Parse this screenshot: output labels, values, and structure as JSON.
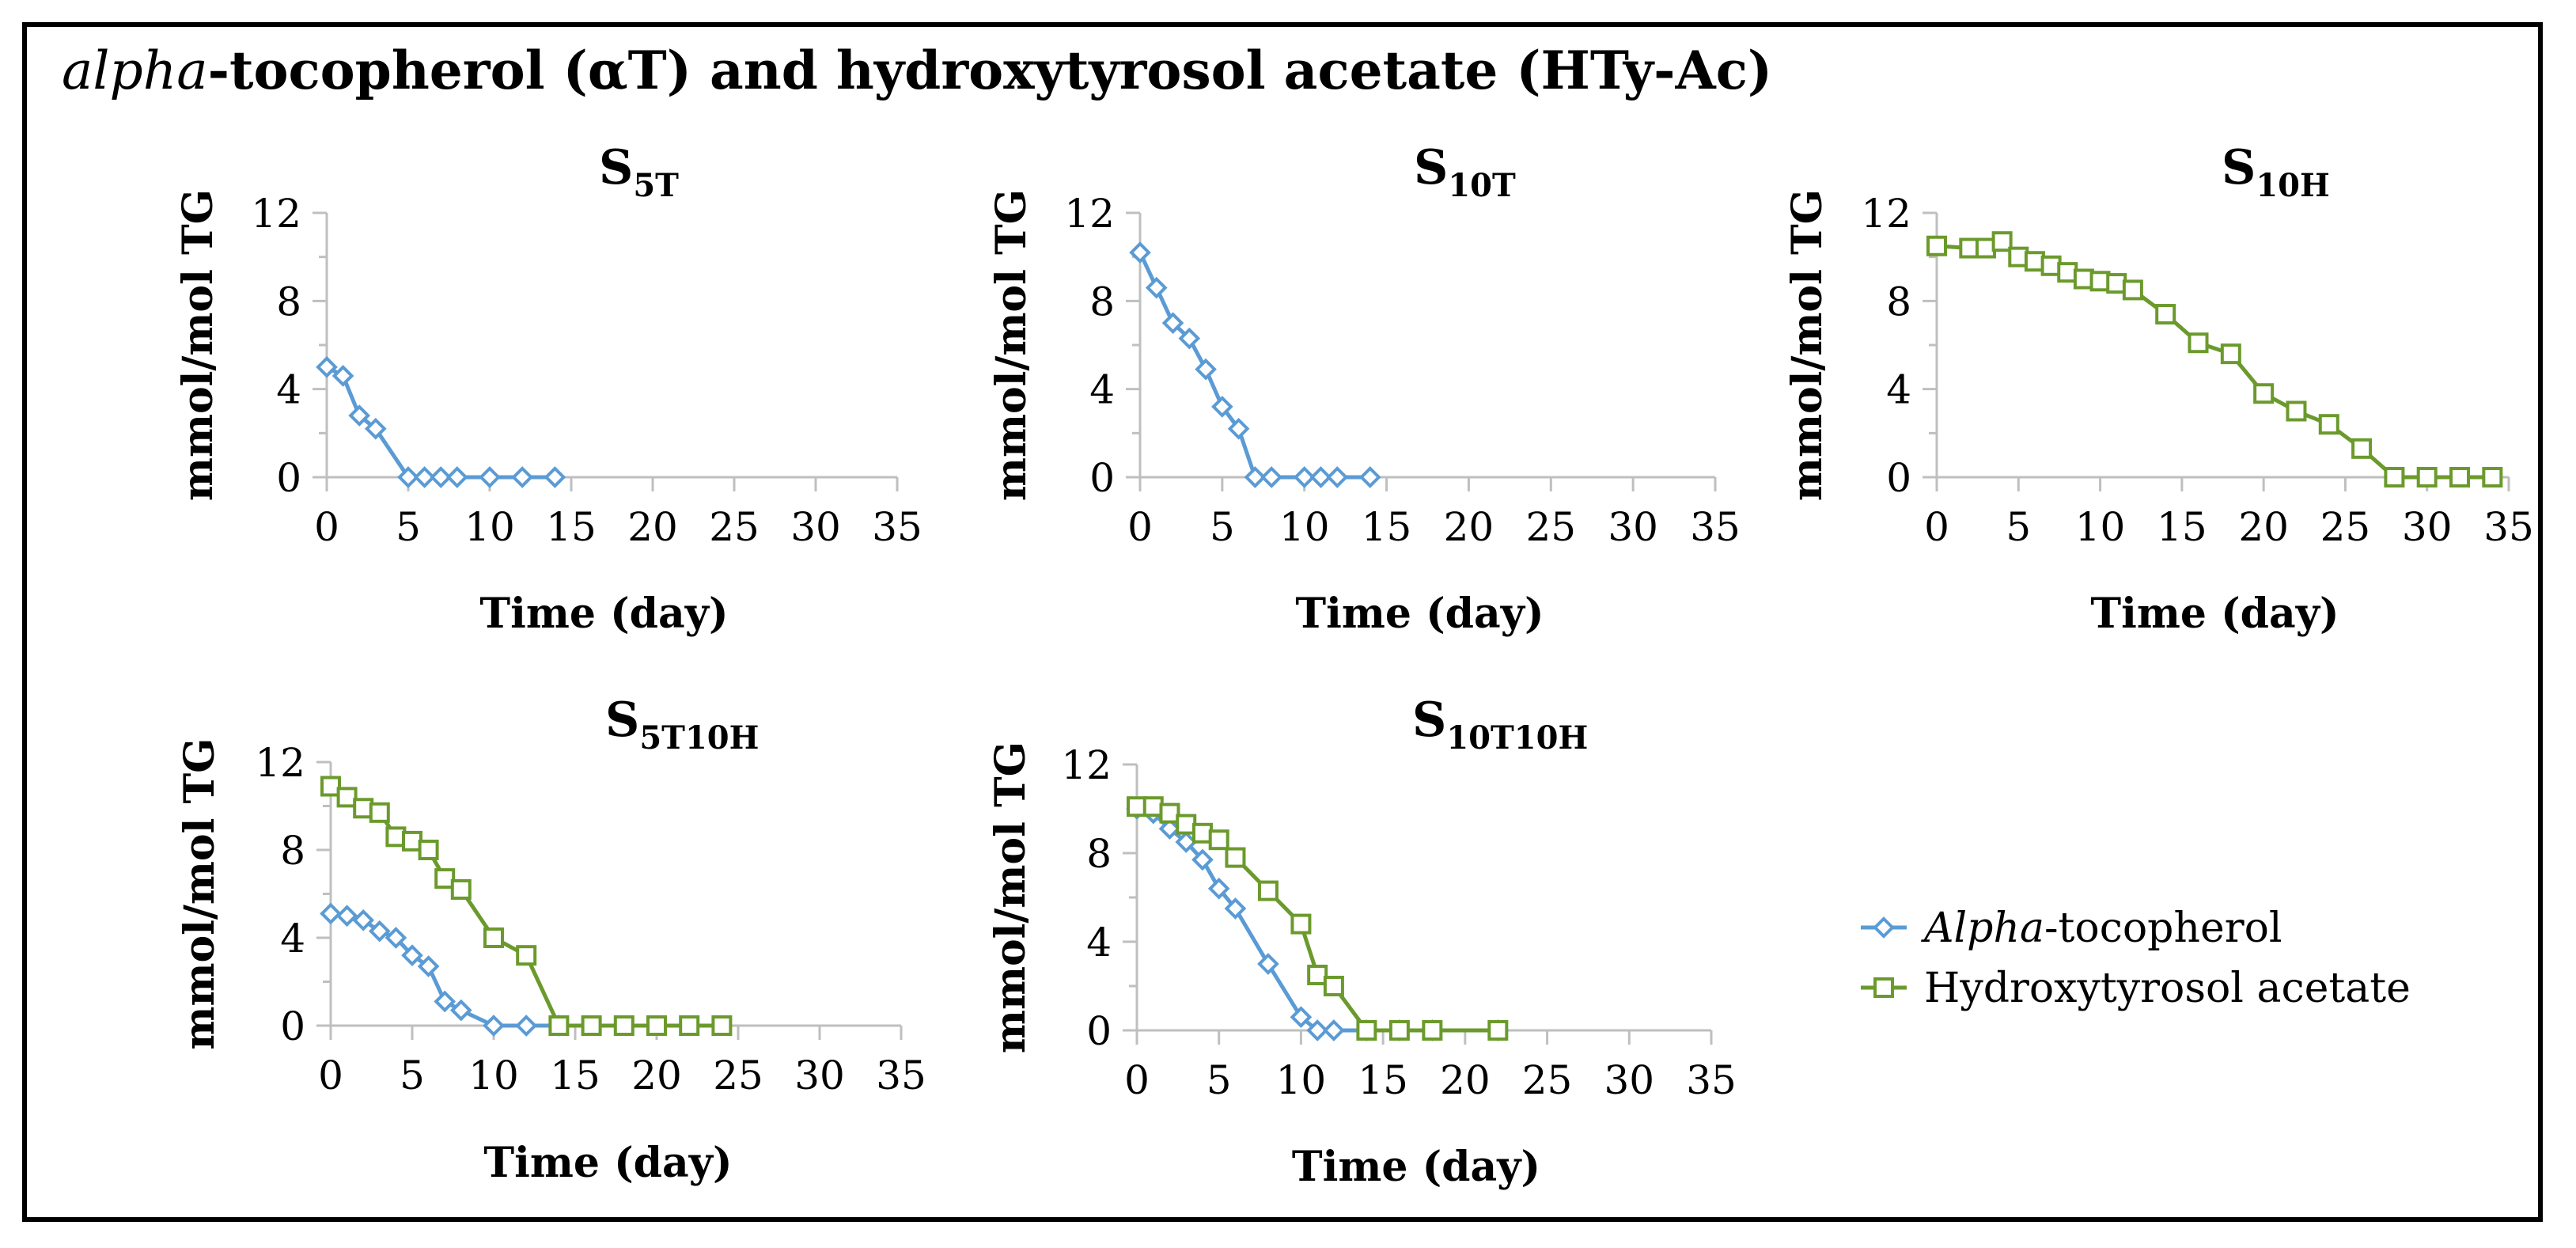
{
  "figure_title": {
    "italic_part": "alpha",
    "bold_part": "-tocopherol (αT) and hydroxytyrosol acetate (HTy-Ac)"
  },
  "colors": {
    "alpha_tocopherol": "#5b9bd5",
    "hydroxytyrosol_acetate": "#6b9a2c",
    "axis": "#bfbfbf",
    "text": "#000000"
  },
  "legend": {
    "items": [
      {
        "series": "alpha",
        "italic": "Alpha",
        "rest": "-tocopherol",
        "marker": "diamond"
      },
      {
        "series": "hty",
        "italic": "",
        "rest": "Hydroxytyrosol acetate",
        "marker": "square"
      }
    ]
  },
  "chart_data": [
    {
      "type": "line",
      "title": {
        "main": "S",
        "sub": "5T"
      },
      "xlabel": "Time (day)",
      "ylabel": "mmol/mol TG",
      "xlim": [
        0,
        35
      ],
      "ylim": [
        0,
        12
      ],
      "xticks": [
        "0",
        "5",
        "10",
        "15",
        "20",
        "25",
        "30",
        "35"
      ],
      "yticks": [
        "0",
        "4",
        "8",
        "12"
      ],
      "series": [
        {
          "name": "Alpha-tocopherol",
          "key": "alpha",
          "x": [
            0,
            1,
            2,
            3,
            5,
            6,
            7,
            8,
            10,
            12,
            14
          ],
          "y": [
            5.0,
            4.6,
            2.8,
            2.2,
            0,
            0,
            0,
            0,
            0,
            0,
            0
          ]
        }
      ]
    },
    {
      "type": "line",
      "title": {
        "main": "S",
        "sub": "10T"
      },
      "xlabel": "Time (day)",
      "ylabel": "mmol/mol TG",
      "xlim": [
        0,
        35
      ],
      "ylim": [
        0,
        12
      ],
      "xticks": [
        "0",
        "5",
        "10",
        "15",
        "20",
        "25",
        "30",
        "35"
      ],
      "yticks": [
        "0",
        "4",
        "8",
        "12"
      ],
      "series": [
        {
          "name": "Alpha-tocopherol",
          "key": "alpha",
          "x": [
            0,
            1,
            2,
            3,
            4,
            5,
            6,
            7,
            8,
            10,
            11,
            12,
            14
          ],
          "y": [
            10.2,
            8.6,
            7.0,
            6.3,
            4.9,
            3.2,
            2.2,
            0,
            0,
            0,
            0,
            0,
            0
          ]
        }
      ]
    },
    {
      "type": "line",
      "title": {
        "main": "S",
        "sub": "10H"
      },
      "xlabel": "Time (day)",
      "ylabel": "mmol/mol TG",
      "xlim": [
        0,
        35
      ],
      "ylim": [
        0,
        12
      ],
      "xticks": [
        "0",
        "5",
        "10",
        "15",
        "20",
        "25",
        "30",
        "35"
      ],
      "yticks": [
        "0",
        "4",
        "8",
        "12"
      ],
      "series": [
        {
          "name": "Hydroxytyrosol acetate",
          "key": "hty",
          "x": [
            0,
            2,
            3,
            4,
            5,
            6,
            7,
            8,
            9,
            10,
            11,
            12,
            14,
            16,
            18,
            20,
            22,
            24,
            26,
            28,
            30,
            32,
            34
          ],
          "y": [
            10.5,
            10.4,
            10.4,
            10.7,
            10.0,
            9.8,
            9.6,
            9.3,
            9.0,
            8.9,
            8.8,
            8.5,
            7.4,
            6.1,
            5.6,
            3.8,
            3.0,
            2.4,
            1.3,
            0,
            0,
            0,
            0
          ]
        }
      ]
    },
    {
      "type": "line",
      "title": {
        "main": "S",
        "sub": "5T10H"
      },
      "xlabel": "Time (day)",
      "ylabel": "mmol/mol TG",
      "xlim": [
        0,
        35
      ],
      "ylim": [
        0,
        12
      ],
      "xticks": [
        "0",
        "5",
        "10",
        "15",
        "20",
        "25",
        "30",
        "35"
      ],
      "yticks": [
        "0",
        "4",
        "8",
        "12"
      ],
      "series": [
        {
          "name": "Alpha-tocopherol",
          "key": "alpha",
          "x": [
            0,
            1,
            2,
            3,
            4,
            5,
            6,
            7,
            8,
            10,
            12,
            14
          ],
          "y": [
            5.1,
            5.0,
            4.8,
            4.3,
            4.0,
            3.2,
            2.7,
            1.1,
            0.7,
            0,
            0,
            0
          ]
        },
        {
          "name": "Hydroxytyrosol acetate",
          "key": "hty",
          "x": [
            0,
            1,
            2,
            3,
            4,
            5,
            6,
            7,
            8,
            10,
            12,
            14,
            16,
            18,
            20,
            22,
            24
          ],
          "y": [
            10.9,
            10.4,
            9.9,
            9.7,
            8.6,
            8.4,
            8.0,
            6.7,
            6.2,
            4.0,
            3.2,
            0,
            0,
            0,
            0,
            0,
            0
          ]
        }
      ]
    },
    {
      "type": "line",
      "title": {
        "main": "S",
        "sub": "10T10H"
      },
      "xlabel": "Time (day)",
      "ylabel": "mmol/mol TG",
      "xlim": [
        0,
        35
      ],
      "ylim": [
        0,
        12
      ],
      "xticks": [
        "0",
        "5",
        "10",
        "15",
        "20",
        "25",
        "30",
        "35"
      ],
      "yticks": [
        "0",
        "4",
        "8",
        "12"
      ],
      "series": [
        {
          "name": "Alpha-tocopherol",
          "key": "alpha",
          "x": [
            0,
            1,
            2,
            3,
            4,
            5,
            6,
            8,
            10,
            11,
            12,
            14,
            16,
            18,
            22
          ],
          "y": [
            10.0,
            9.8,
            9.1,
            8.5,
            7.7,
            6.4,
            5.5,
            3.0,
            0.6,
            0,
            0,
            0,
            0,
            0,
            0
          ]
        },
        {
          "name": "Hydroxytyrosol acetate",
          "key": "hty",
          "x": [
            0,
            1,
            2,
            3,
            4,
            5,
            6,
            8,
            10,
            11,
            12,
            14,
            16,
            18,
            22
          ],
          "y": [
            10.1,
            10.1,
            9.8,
            9.3,
            8.9,
            8.6,
            7.8,
            6.3,
            4.8,
            2.5,
            2.0,
            0,
            0,
            0,
            0
          ]
        }
      ]
    }
  ]
}
